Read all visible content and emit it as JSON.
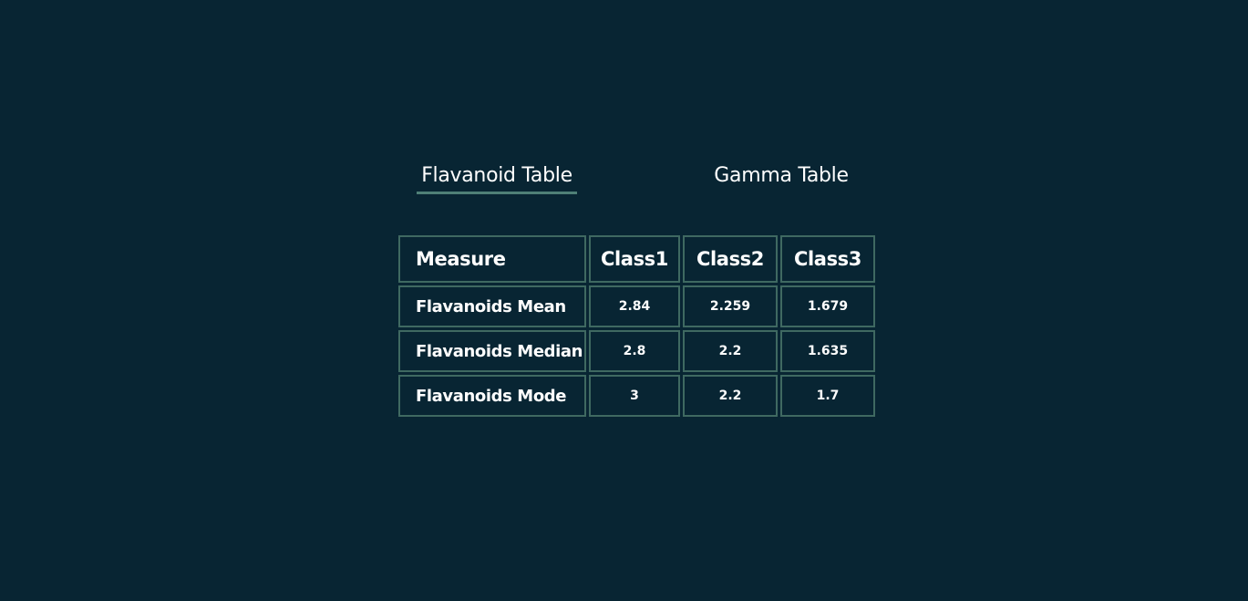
{
  "tabs": [
    {
      "label": "Flavanoid Table",
      "active": true
    },
    {
      "label": "Gamma Table",
      "active": false
    }
  ],
  "table": {
    "headers": [
      "Measure",
      "Class1",
      "Class2",
      "Class3"
    ],
    "rows": [
      {
        "label": "Flavanoids Mean",
        "values": [
          "2.84",
          "2.259",
          "1.679"
        ]
      },
      {
        "label": "Flavanoids Median",
        "values": [
          "2.8",
          "2.2",
          "1.635"
        ]
      },
      {
        "label": "Flavanoids Mode",
        "values": [
          "3",
          "2.2",
          "1.7"
        ]
      }
    ]
  },
  "colors": {
    "background": "#082533",
    "border": "#3f6961",
    "active_underline": "#4f8077",
    "text": "#ffffff"
  }
}
